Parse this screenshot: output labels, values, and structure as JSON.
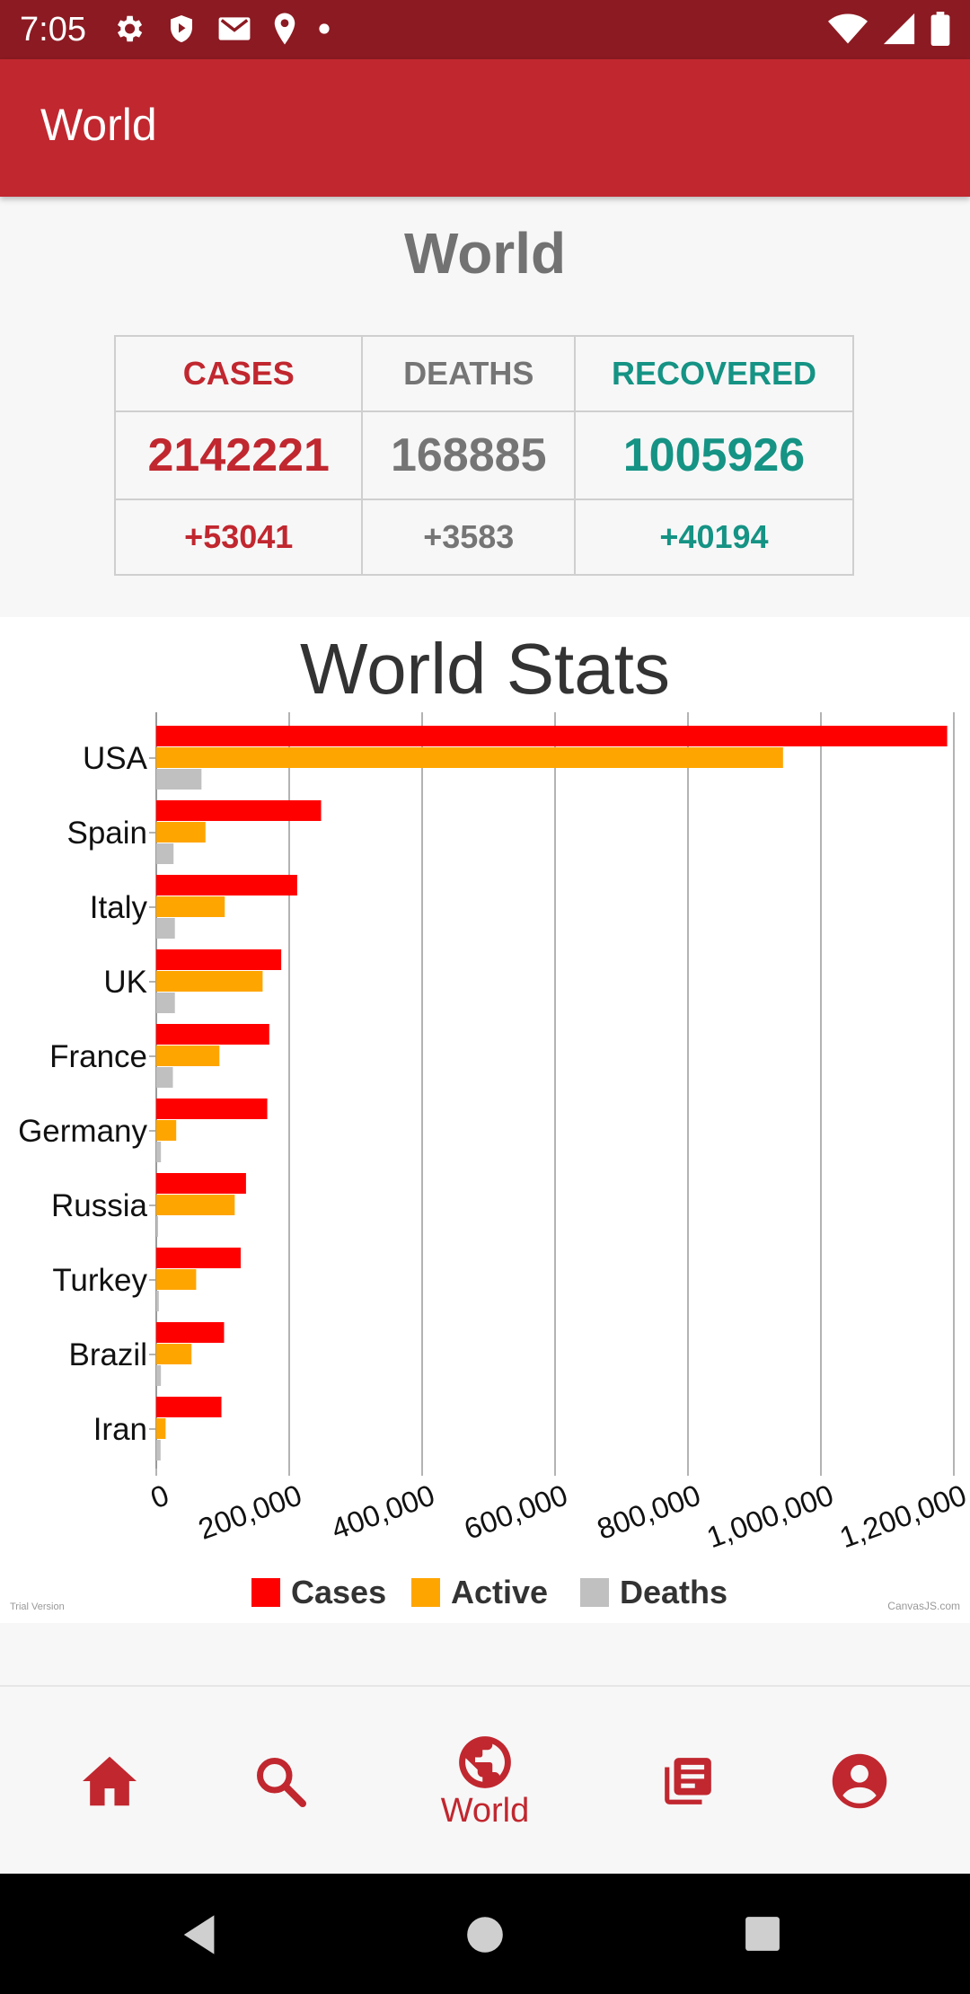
{
  "status_bar": {
    "time": "7:05",
    "left_icons": [
      "gear-icon",
      "shield-play-icon",
      "gmail-icon",
      "location-icon",
      "dot-icon"
    ],
    "right_icons": [
      "wifi-icon",
      "signal-icon",
      "battery-icon"
    ]
  },
  "app_bar": {
    "title": "World"
  },
  "summary": {
    "heading": "World",
    "columns": [
      {
        "label": "CASES",
        "value": "2142221",
        "delta": "+53041",
        "color": "#c1272f"
      },
      {
        "label": "DEATHS",
        "value": "168885",
        "delta": "+3583",
        "color": "#757575"
      },
      {
        "label": "RECOVERED",
        "value": "1005926",
        "delta": "+40194",
        "color": "#159384"
      }
    ]
  },
  "chart_data": {
    "type": "bar",
    "orientation": "horizontal",
    "title": "World Stats",
    "categories": [
      "USA",
      "Spain",
      "Italy",
      "UK",
      "France",
      "Germany",
      "Russia",
      "Turkey",
      "Brazil",
      "Iran"
    ],
    "series": [
      {
        "name": "Cases",
        "color": "#ff0000",
        "values": [
          1190000,
          248000,
          212000,
          188000,
          170000,
          167000,
          135000,
          127000,
          102000,
          98000
        ]
      },
      {
        "name": "Active",
        "color": "#ffa500",
        "values": [
          943000,
          74000,
          103000,
          160000,
          95000,
          30000,
          118000,
          60000,
          53000,
          14000
        ]
      },
      {
        "name": "Deaths",
        "color": "#c0c0c0",
        "values": [
          68000,
          26000,
          28000,
          28000,
          25000,
          7000,
          1900,
          3800,
          7000,
          6500
        ]
      }
    ],
    "x_ticks": [
      "0",
      "200,000",
      "400,000",
      "600,000",
      "800,000",
      "1,000,000",
      "1,200,000"
    ],
    "xlim": [
      0,
      1200000
    ],
    "grid": true,
    "legend_position": "bottom",
    "watermark_left": "Trial Version",
    "watermark_right": "CanvasJS.com"
  },
  "bottom_nav": {
    "items": [
      {
        "name": "home",
        "label": ""
      },
      {
        "name": "search",
        "label": ""
      },
      {
        "name": "world",
        "label": "World",
        "active": true
      },
      {
        "name": "news",
        "label": ""
      },
      {
        "name": "profile",
        "label": ""
      }
    ]
  },
  "colors": {
    "primary": "#c1272f",
    "primary_dark": "#8c1a22",
    "teal": "#159384",
    "grey": "#757575"
  }
}
